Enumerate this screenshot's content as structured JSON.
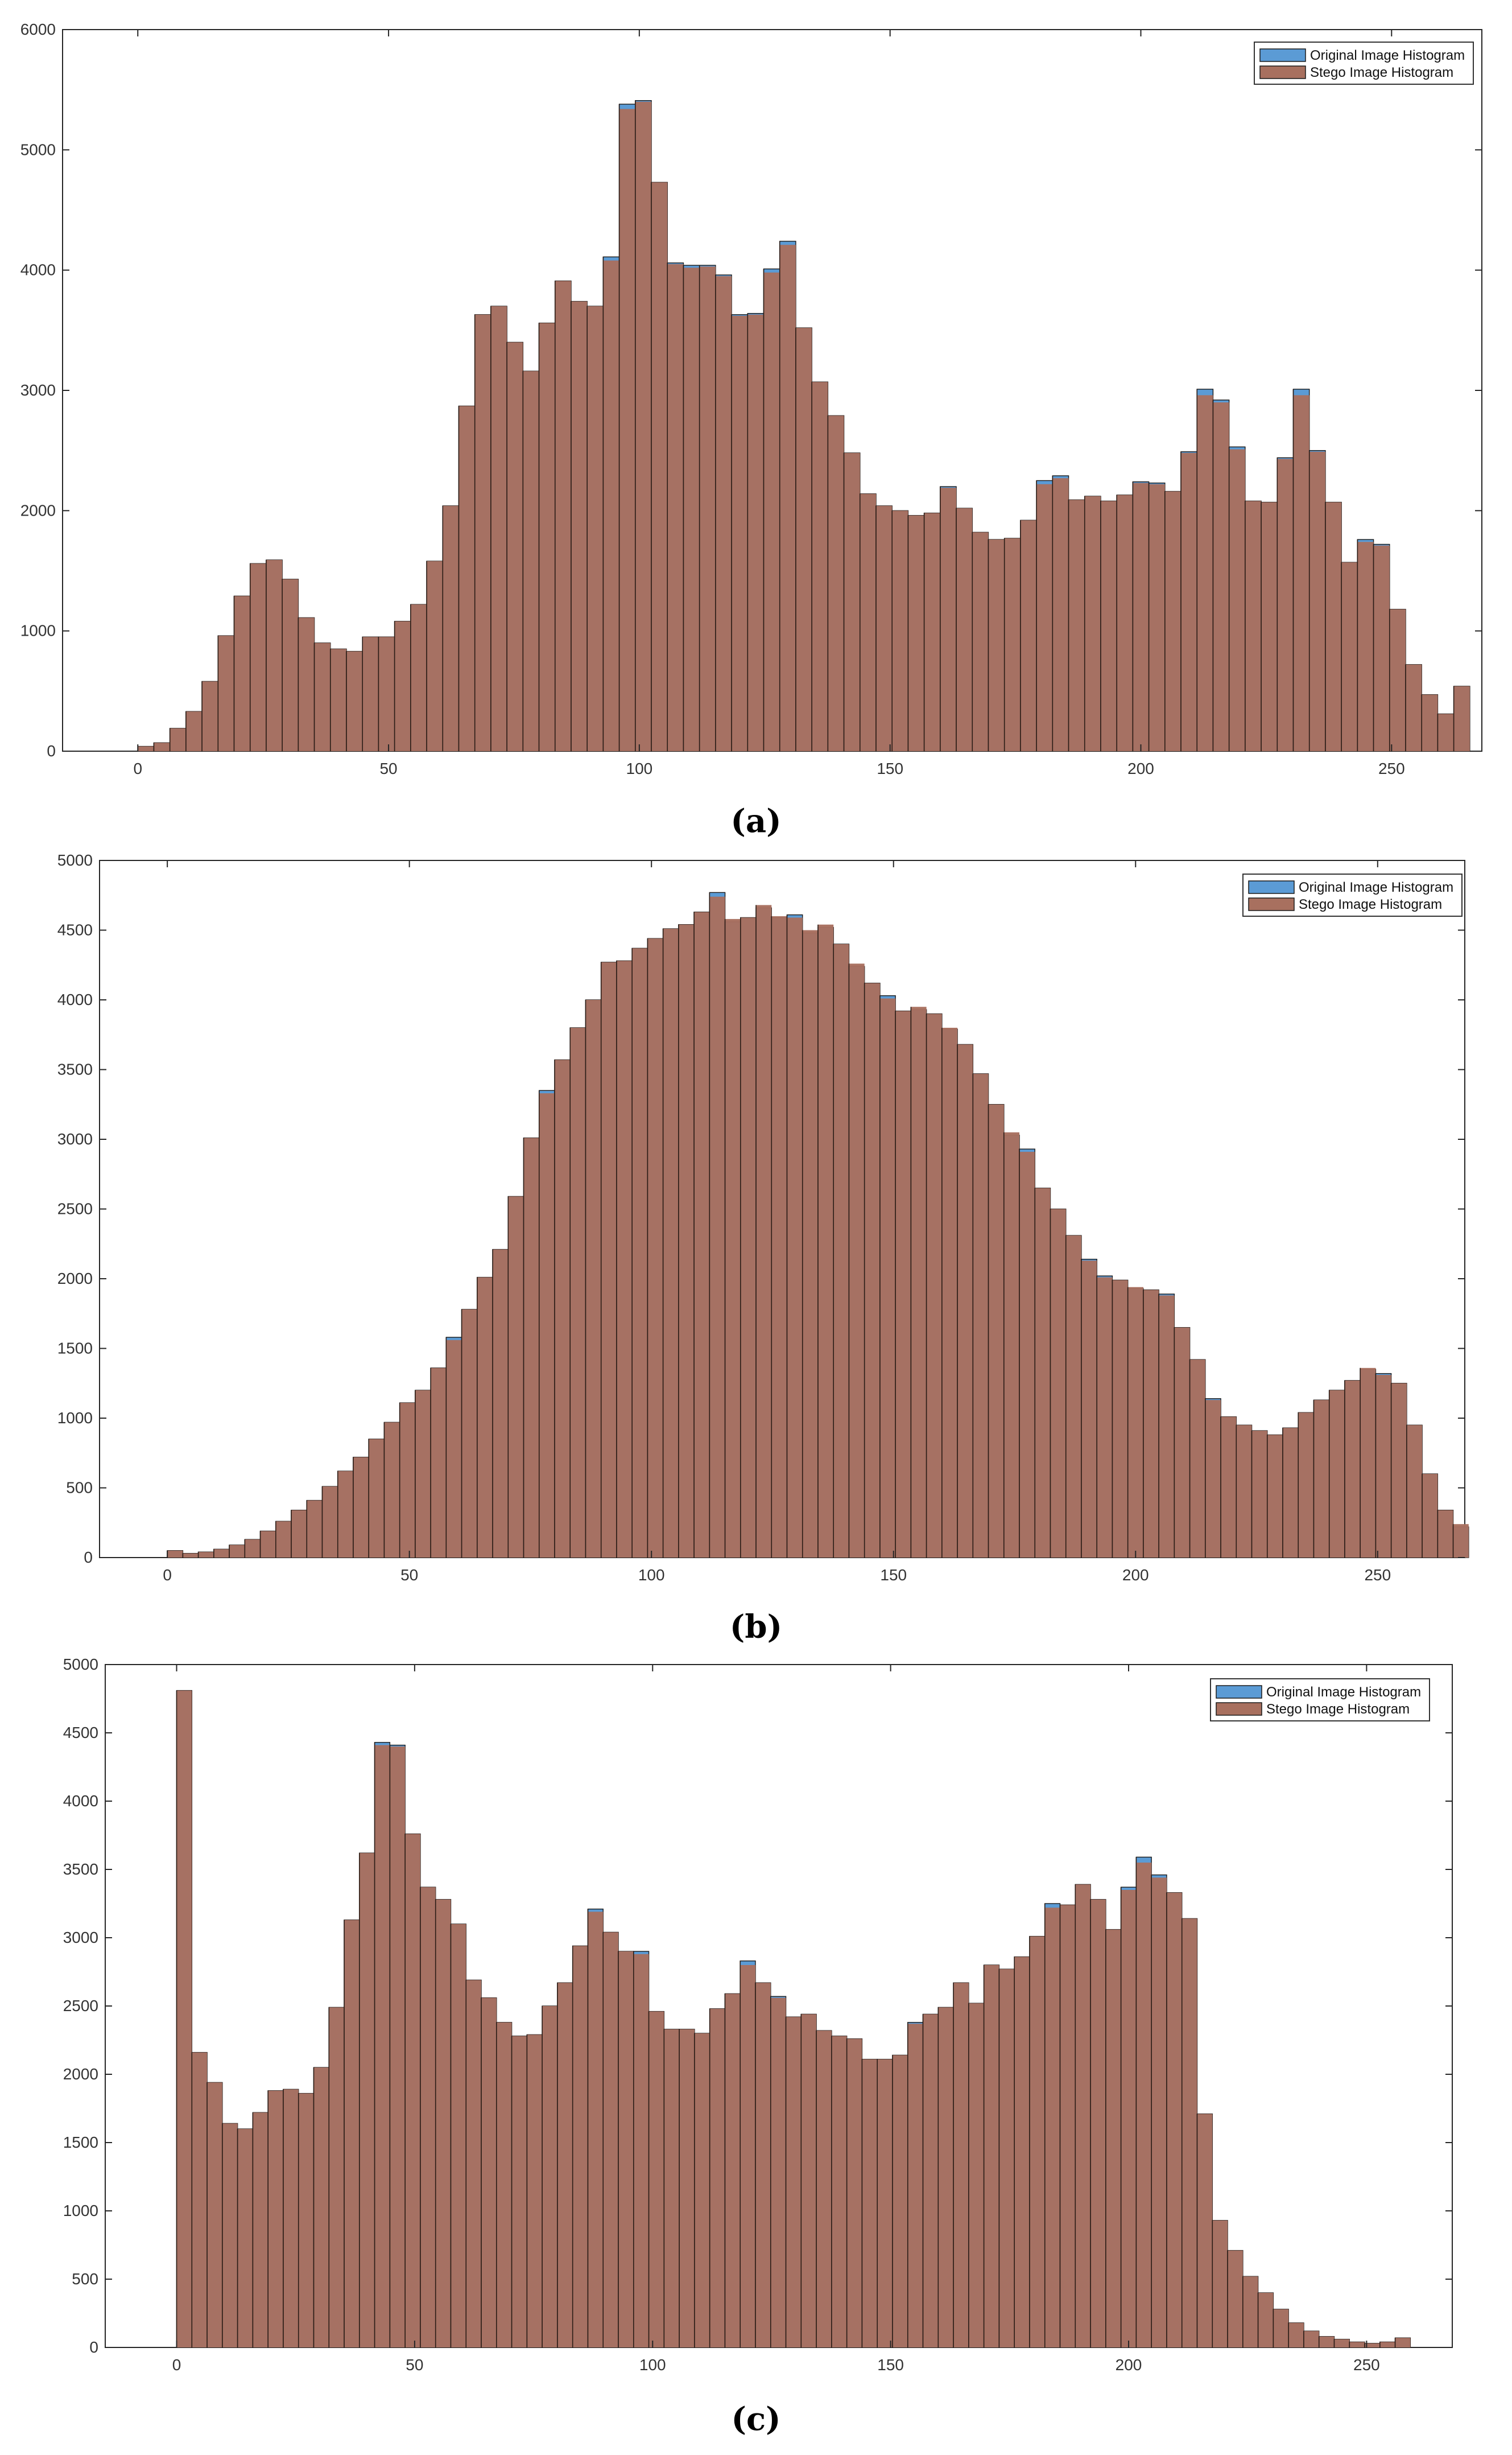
{
  "chart_data": [
    {
      "type": "bar",
      "caption": "(a)",
      "xlim": [
        -15,
        268
      ],
      "ylim": [
        0,
        6000
      ],
      "xticks": [
        "0",
        "50",
        "100",
        "150",
        "200",
        "250"
      ],
      "yticks": [
        "0",
        "1000",
        "2000",
        "3000",
        "4000",
        "5000",
        "6000"
      ],
      "legend": {
        "position": "top-right",
        "entries": [
          "Original Image Histogram",
          "Stego Image Histogram"
        ]
      },
      "colors": {
        "original": "#5b9bd5",
        "stego": "#a8705f"
      },
      "bin_width": 3.2,
      "series": [
        {
          "name": "Original Image Histogram",
          "values": [
            40,
            70,
            190,
            330,
            580,
            960,
            1290,
            1560,
            1590,
            1430,
            1110,
            900,
            850,
            830,
            950,
            950,
            1080,
            1220,
            1580,
            2040,
            2870,
            3630,
            3700,
            3400,
            3160,
            3560,
            3910,
            3740,
            3700,
            4110,
            5380,
            5410,
            4730,
            4060,
            4040,
            4040,
            3960,
            3630,
            3640,
            4010,
            4240,
            3520,
            3070,
            2790,
            2480,
            2140,
            2040,
            2000,
            1960,
            1980,
            2200,
            2020,
            1820,
            1760,
            1770,
            1920,
            2250,
            2290,
            2090,
            2120,
            2080,
            2130,
            2240,
            2230,
            2160,
            2490,
            3010,
            2920,
            2530,
            2080,
            2070,
            2440,
            3010,
            2500,
            2070,
            1570,
            1760,
            1720,
            1180,
            720,
            470,
            310,
            540
          ]
        },
        {
          "name": "Stego Image Histogram",
          "values": [
            40,
            70,
            190,
            330,
            580,
            960,
            1290,
            1560,
            1590,
            1430,
            1110,
            900,
            850,
            830,
            950,
            950,
            1080,
            1220,
            1580,
            2040,
            2870,
            3630,
            3700,
            3400,
            3160,
            3560,
            3910,
            3740,
            3700,
            4080,
            5340,
            5400,
            4730,
            4050,
            4020,
            4030,
            3950,
            3620,
            3630,
            3980,
            4210,
            3520,
            3070,
            2790,
            2480,
            2140,
            2040,
            2000,
            1960,
            1980,
            2190,
            2020,
            1820,
            1760,
            1770,
            1920,
            2220,
            2270,
            2090,
            2120,
            2080,
            2130,
            2230,
            2220,
            2160,
            2480,
            2960,
            2900,
            2510,
            2080,
            2070,
            2430,
            2960,
            2490,
            2070,
            1570,
            1740,
            1710,
            1180,
            720,
            470,
            310,
            540
          ]
        }
      ]
    },
    {
      "type": "bar",
      "caption": "(b)",
      "xlim": [
        -14,
        268
      ],
      "ylim": [
        0,
        5000
      ],
      "xticks": [
        "0",
        "50",
        "100",
        "150",
        "200",
        "250"
      ],
      "yticks": [
        "0",
        "500",
        "1000",
        "1500",
        "2000",
        "2500",
        "3000",
        "3500",
        "4000",
        "4500",
        "5000"
      ],
      "legend": {
        "position": "top-right",
        "entries": [
          "Original Image  Histogram",
          "Stego Image Histogram"
        ]
      },
      "colors": {
        "original": "#5b9bd5",
        "stego": "#a8705f"
      },
      "bin_width": 3.2,
      "series": [
        {
          "name": "Original Image  Histogram",
          "values": [
            50,
            30,
            40,
            60,
            90,
            130,
            190,
            260,
            340,
            410,
            510,
            620,
            720,
            850,
            970,
            1110,
            1200,
            1360,
            1580,
            1780,
            2010,
            2210,
            2590,
            3010,
            3350,
            3570,
            3800,
            4000,
            4270,
            4280,
            4370,
            4440,
            4510,
            4540,
            4630,
            4770,
            4560,
            4590,
            4660,
            4590,
            4610,
            4480,
            4520,
            4400,
            4240,
            4120,
            4030,
            3920,
            3930,
            3900,
            3790,
            3680,
            3470,
            3250,
            3030,
            2930,
            2650,
            2500,
            2310,
            2140,
            2020,
            1990,
            1930,
            1920,
            1890,
            1650,
            1420,
            1140,
            1010,
            950,
            910,
            880,
            930,
            1040,
            1130,
            1200,
            1270,
            1350,
            1320,
            1250,
            950,
            600,
            340,
            220
          ]
        },
        {
          "name": "Stego Image Histogram",
          "values": [
            50,
            30,
            40,
            60,
            90,
            130,
            190,
            260,
            340,
            410,
            510,
            620,
            720,
            850,
            970,
            1110,
            1200,
            1360,
            1560,
            1780,
            2010,
            2210,
            2590,
            3010,
            3330,
            3570,
            3800,
            4000,
            4270,
            4280,
            4370,
            4440,
            4510,
            4540,
            4630,
            4740,
            4580,
            4590,
            4680,
            4600,
            4590,
            4500,
            4540,
            4400,
            4260,
            4120,
            4010,
            3920,
            3950,
            3900,
            3800,
            3680,
            3470,
            3250,
            3050,
            2910,
            2650,
            2500,
            2310,
            2130,
            2010,
            1990,
            1940,
            1920,
            1880,
            1650,
            1420,
            1130,
            1010,
            950,
            910,
            880,
            930,
            1040,
            1130,
            1200,
            1270,
            1360,
            1310,
            1250,
            950,
            600,
            340,
            240
          ]
        }
      ]
    },
    {
      "type": "bar",
      "caption": "(c)",
      "xlim": [
        -15,
        268
      ],
      "ylim": [
        0,
        5000
      ],
      "xticks": [
        "0",
        "50",
        "100",
        "150",
        "200",
        "250"
      ],
      "yticks": [
        "0",
        "500",
        "1000",
        "1500",
        "2000",
        "2500",
        "3000",
        "3500",
        "4000",
        "4500",
        "5000"
      ],
      "legend": {
        "position": "top-right",
        "entries": [
          "Original Image Histogram",
          "Stego Image Histogram"
        ]
      },
      "colors": {
        "original": "#5b9bd5",
        "stego": "#a8705f"
      },
      "bin_width": 3.2,
      "series": [
        {
          "name": "Original Image Histogram",
          "values": [
            4810,
            2160,
            1940,
            1640,
            1600,
            1720,
            1880,
            1890,
            1860,
            2050,
            2490,
            3130,
            3620,
            4430,
            4410,
            3760,
            3370,
            3280,
            3100,
            2690,
            2560,
            2380,
            2280,
            2290,
            2500,
            2670,
            2940,
            3210,
            3040,
            2900,
            2900,
            2460,
            2330,
            2330,
            2300,
            2480,
            2590,
            2830,
            2670,
            2570,
            2420,
            2440,
            2320,
            2280,
            2260,
            2110,
            2110,
            2140,
            2380,
            2440,
            2490,
            2670,
            2520,
            2800,
            2770,
            2860,
            3010,
            3250,
            3240,
            3390,
            3280,
            3060,
            3370,
            3590,
            3460,
            3330,
            3140,
            1710,
            930,
            710,
            520,
            400,
            280,
            180,
            120,
            80,
            60,
            40,
            30,
            40,
            70
          ]
        },
        {
          "name": "Stego Image Histogram",
          "values": [
            4810,
            2160,
            1940,
            1640,
            1600,
            1720,
            1880,
            1890,
            1860,
            2050,
            2490,
            3130,
            3620,
            4410,
            4400,
            3760,
            3370,
            3280,
            3100,
            2690,
            2560,
            2380,
            2280,
            2290,
            2500,
            2670,
            2940,
            3190,
            3040,
            2900,
            2880,
            2460,
            2330,
            2330,
            2300,
            2480,
            2590,
            2800,
            2670,
            2560,
            2420,
            2440,
            2320,
            2280,
            2260,
            2110,
            2110,
            2140,
            2370,
            2440,
            2490,
            2670,
            2520,
            2800,
            2770,
            2860,
            3010,
            3220,
            3240,
            3390,
            3280,
            3060,
            3350,
            3550,
            3440,
            3330,
            3140,
            1710,
            930,
            710,
            520,
            400,
            280,
            180,
            120,
            80,
            60,
            40,
            30,
            40,
            70
          ]
        }
      ]
    }
  ]
}
